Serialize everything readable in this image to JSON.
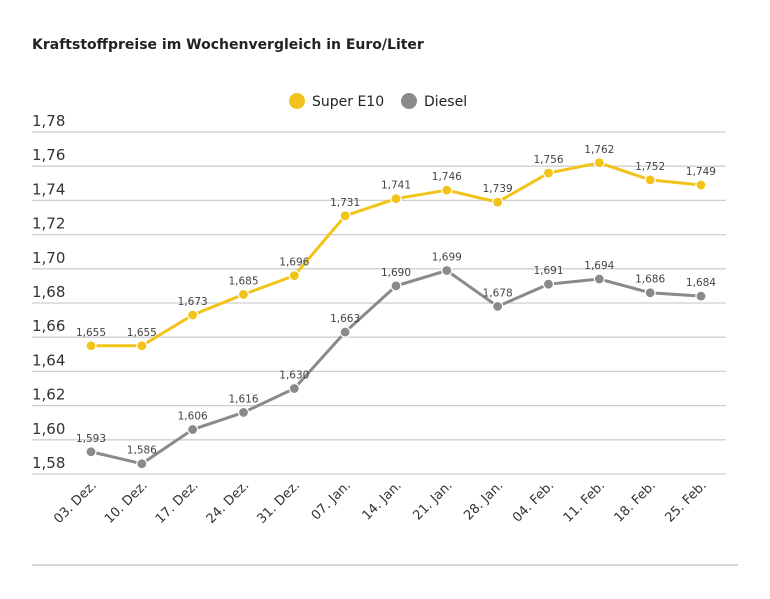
{
  "chart_data": {
    "type": "line",
    "title": "Kraftstoffpreise im Wochenvergleich in Euro/Liter",
    "categories": [
      "03. Dez.",
      "10. Dez.",
      "17. Dez.",
      "24. Dez.",
      "31. Dez.",
      "07. Jan.",
      "14. Jan.",
      "21. Jan.",
      "28. Jan.",
      "04. Feb.",
      "11. Feb.",
      "18. Feb.",
      "25. Feb."
    ],
    "series": [
      {
        "name": "Super E10",
        "color": "#f2c318",
        "values": [
          1.655,
          1.655,
          1.673,
          1.685,
          1.696,
          1.731,
          1.741,
          1.746,
          1.739,
          1.756,
          1.762,
          1.752,
          1.749
        ],
        "labels": [
          "1,655",
          "1,655",
          "1,673",
          "1,685",
          "1,696",
          "1,731",
          "1,741",
          "1,746",
          "1,739",
          "1,756",
          "1,762",
          "1,752",
          "1,749"
        ]
      },
      {
        "name": "Diesel",
        "color": "#8a8a8a",
        "values": [
          1.593,
          1.586,
          1.606,
          1.616,
          1.63,
          1.663,
          1.69,
          1.699,
          1.678,
          1.691,
          1.694,
          1.686,
          1.684
        ],
        "labels": [
          "1,593",
          "1,586",
          "1,606",
          "1,616",
          "1,630",
          "1,663",
          "1,690",
          "1,699",
          "1,678",
          "1,691",
          "1,694",
          "1,686",
          "1,684"
        ]
      }
    ],
    "yticks": [
      "1,78",
      "1,76",
      "1,74",
      "1,72",
      "1,70",
      "1,68",
      "1,66",
      "1,64",
      "1,62",
      "1,60",
      "1,58"
    ],
    "ylim": [
      1.58,
      1.78
    ],
    "grid": true,
    "legend": "top-center"
  }
}
